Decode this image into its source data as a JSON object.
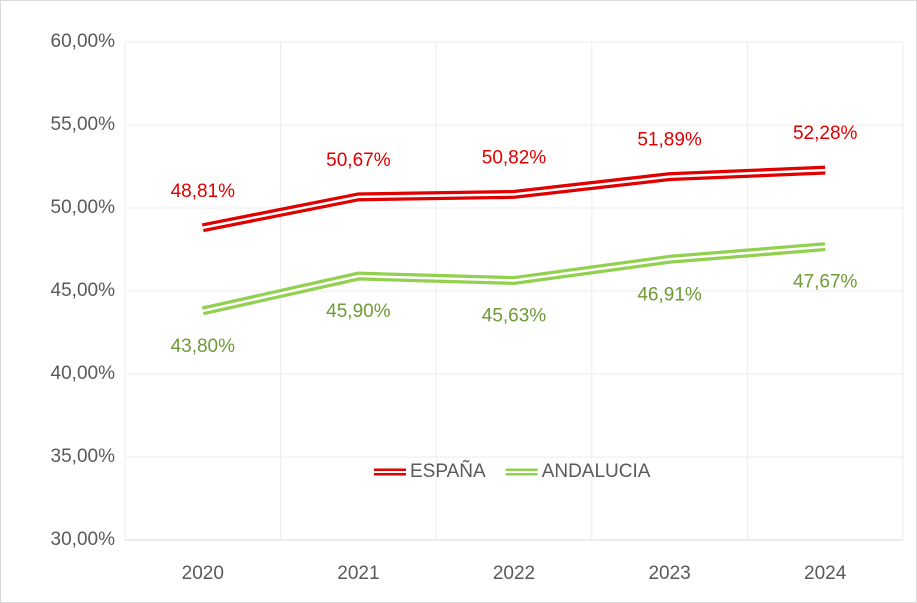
{
  "chart_data": {
    "type": "line",
    "categories": [
      "2020",
      "2021",
      "2022",
      "2023",
      "2024"
    ],
    "series": [
      {
        "name": "ESPAÑA",
        "color": "#e00000",
        "label_color": "#e00000",
        "values": [
          48.81,
          50.67,
          50.82,
          51.89,
          52.28
        ],
        "value_labels": [
          "48,81%",
          "50,67%",
          "50,82%",
          "51,89%",
          "52,28%"
        ],
        "label_position": "above"
      },
      {
        "name": "ANDALUCIA",
        "color": "#92d050",
        "label_color": "#6f9a37",
        "values": [
          43.8,
          45.9,
          45.63,
          46.91,
          47.67
        ],
        "value_labels": [
          "43,80%",
          "45,90%",
          "45,63%",
          "46,91%",
          "47,67%"
        ],
        "label_position": "below"
      }
    ],
    "ylim": [
      30,
      60
    ],
    "yticks": [
      {
        "value": 30,
        "label": "30,00%"
      },
      {
        "value": 35,
        "label": "35,00%"
      },
      {
        "value": 40,
        "label": "40,00%"
      },
      {
        "value": 45,
        "label": "45,00%"
      },
      {
        "value": 50,
        "label": "50,00%"
      },
      {
        "value": 55,
        "label": "55,00%"
      },
      {
        "value": 60,
        "label": "60,00%"
      }
    ],
    "grid": true,
    "legend": "lower center"
  }
}
